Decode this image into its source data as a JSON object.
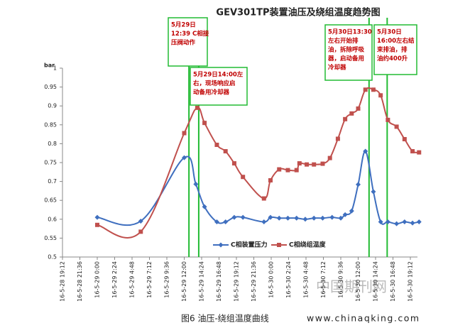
{
  "chart_data": {
    "type": "line",
    "title": "GEV301TP装置油压及绕组温度趋势图",
    "y_unit": "bar",
    "ylim": [
      0.5,
      1
    ],
    "yticks": [
      0.5,
      0.55,
      0.6,
      0.65,
      0.7,
      0.75,
      0.8,
      0.85,
      0.9,
      0.95,
      1
    ],
    "xlim": [
      "16-5-28 19:12",
      "16-5-30 19:12"
    ],
    "xticks": [
      "16-5-28 19:12",
      "16-5-28 21:36",
      "16-5-29 0:00",
      "16-5-29 2:24",
      "16-5-29 4:48",
      "16-5-29 7:12",
      "16-5-29 9:36",
      "16-5-29 12:00",
      "16-5-29 14:24",
      "16-5-29 16:48",
      "16-5-29 19:12",
      "16-5-29 21:36",
      "16-5-30 0:00",
      "16-5-30 2:24",
      "16-5-30 4:48",
      "16-5-30 7:12",
      "16-5-30 9:36",
      "16-5-30 12:00",
      "16-5-30 14:24",
      "16-5-30 16:48",
      "16-5-30 19:12"
    ],
    "grid": false,
    "series": [
      {
        "name": "C相装置压力",
        "color": "#3f6fbf",
        "marker": "diamond",
        "x": [
          "16-5-29 0:00",
          "16-5-29 6:00",
          "16-5-29 12:00",
          "16-5-29 13:36",
          "16-5-29 14:48",
          "16-5-29 16:30",
          "16-5-29 17:42",
          "16-5-29 18:54",
          "16-5-29 20:06",
          "16-5-29 23:00",
          "16-5-29 23:54",
          "16-5-30 1:06",
          "16-5-30 2:18",
          "16-5-30 3:30",
          "16-5-30 4:42",
          "16-5-30 5:54",
          "16-5-30 7:06",
          "16-5-30 8:24",
          "16-5-30 9:36",
          "16-5-30 10:12",
          "16-5-30 11:06",
          "16-5-30 12:00",
          "16-5-30 13:00",
          "16-5-30 14:06",
          "16-5-30 15:06",
          "16-5-30 16:06",
          "16-5-30 17:18",
          "16-5-30 18:24",
          "16-5-30 19:30",
          "16-5-30 20:24"
        ],
        "values": [
          0.605,
          0.595,
          0.763,
          0.693,
          0.633,
          0.593,
          0.593,
          0.605,
          0.605,
          0.593,
          0.605,
          0.603,
          0.603,
          0.603,
          0.6,
          0.603,
          0.603,
          0.605,
          0.603,
          0.612,
          0.622,
          0.692,
          0.78,
          0.673,
          0.593,
          0.593,
          0.588,
          0.593,
          0.59,
          0.593
        ]
      },
      {
        "name": "C相绕组温度",
        "color": "#c0504d",
        "marker": "square",
        "x": [
          "16-5-29 0:00",
          "16-5-29 6:00",
          "16-5-29 12:00",
          "16-5-29 13:48",
          "16-5-29 14:48",
          "16-5-29 16:30",
          "16-5-29 17:42",
          "16-5-29 18:54",
          "16-5-29 20:06",
          "16-5-29 23:00",
          "16-5-29 23:54",
          "16-5-30 1:06",
          "16-5-30 2:18",
          "16-5-30 3:30",
          "16-5-30 3:54",
          "16-5-30 4:54",
          "16-5-30 5:54",
          "16-5-30 7:06",
          "16-5-30 8:06",
          "16-5-30 9:12",
          "16-5-30 10:12",
          "16-5-30 11:06",
          "16-5-30 12:00",
          "16-5-30 13:00",
          "16-5-30 14:06",
          "16-5-30 15:06",
          "16-5-30 16:06",
          "16-5-30 17:18",
          "16-5-30 18:24",
          "16-5-30 19:30",
          "16-5-30 20:24"
        ],
        "values": [
          0.585,
          0.567,
          0.828,
          0.895,
          0.855,
          0.797,
          0.78,
          0.748,
          0.712,
          0.655,
          0.703,
          0.732,
          0.73,
          0.73,
          0.748,
          0.745,
          0.745,
          0.747,
          0.762,
          0.813,
          0.865,
          0.88,
          0.893,
          0.943,
          0.943,
          0.928,
          0.863,
          0.845,
          0.812,
          0.78,
          0.777
        ]
      }
    ],
    "annotations": [
      {
        "x": "16-5-29 12:39",
        "lines": [
          "5月29日",
          "12:39 C相接",
          "压阀动作"
        ]
      },
      {
        "x": "16-5-29 14:00",
        "lines": [
          "5月29日14:00左",
          "右，现场响应启",
          "动备用冷却器"
        ]
      },
      {
        "x": "16-5-30 13:30",
        "lines": [
          "5月30日13:30",
          "左右开始排",
          "油，拆除呼吸",
          "器，启动备用",
          "冷却器"
        ]
      },
      {
        "x": "16-5-30 16:00",
        "lines": [
          "5月30日",
          "16:00左右结",
          "束排油，排",
          "油约400升"
        ]
      }
    ]
  },
  "caption": "图6 油压-绕组温度曲线",
  "website": "www.chinaqking.com",
  "watermark": "中国期刊网"
}
